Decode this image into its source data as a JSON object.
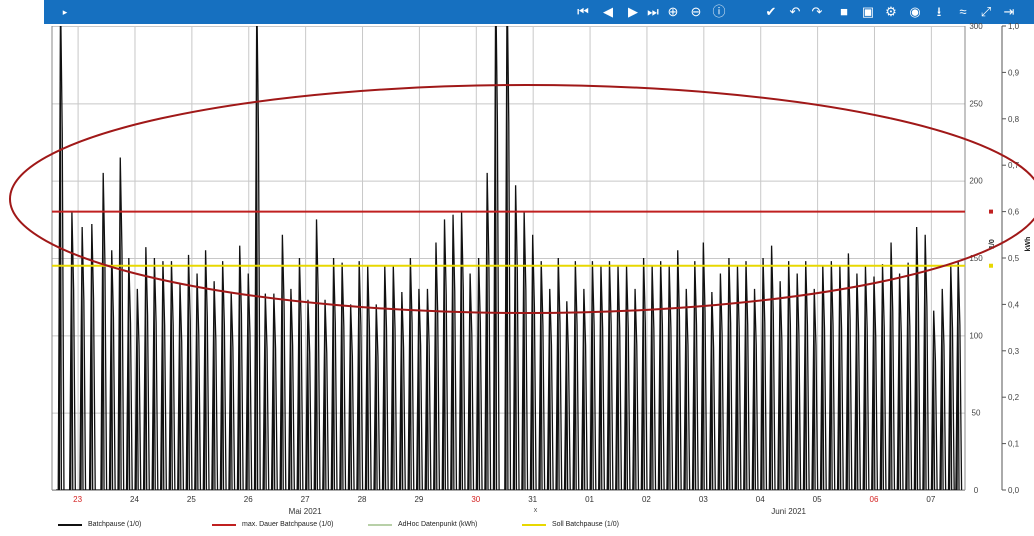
{
  "toolbar": {
    "background": "#1670c0",
    "menu_glyph": "▸",
    "buttons": [
      {
        "name": "skip-to-start-icon",
        "glyph": "⏮"
      },
      {
        "name": "step-back-icon",
        "glyph": "◀"
      },
      {
        "name": "step-forward-icon",
        "glyph": "▶"
      },
      {
        "name": "skip-to-end-icon",
        "glyph": "⏭"
      },
      {
        "name": "zoom-in-icon",
        "glyph": "⊕"
      },
      {
        "name": "zoom-out-icon",
        "glyph": "⊖"
      },
      {
        "name": "info-icon",
        "glyph": "ⓘ"
      },
      {
        "name": "check-icon",
        "glyph": "✔"
      },
      {
        "name": "undo-icon",
        "glyph": "↶"
      },
      {
        "name": "redo-icon",
        "glyph": "↷"
      },
      {
        "name": "save-icon",
        "glyph": "■"
      },
      {
        "name": "save-as-icon",
        "glyph": "▣"
      },
      {
        "name": "settings-gear-icon",
        "glyph": "⚙"
      },
      {
        "name": "eye-icon",
        "glyph": "◉"
      },
      {
        "name": "download-icon",
        "glyph": "⭳"
      },
      {
        "name": "trend-icon",
        "glyph": "≈"
      },
      {
        "name": "expand-icon",
        "glyph": "⤢"
      },
      {
        "name": "exit-icon",
        "glyph": "⇥"
      }
    ]
  },
  "chart_data": {
    "type": "line",
    "x_tick_labels": [
      {
        "label": "23",
        "color": "#d42020"
      },
      {
        "label": "24",
        "color": "#333333"
      },
      {
        "label": "25",
        "color": "#333333"
      },
      {
        "label": "26",
        "color": "#333333"
      },
      {
        "label": "27",
        "color": "#333333"
      },
      {
        "label": "28",
        "color": "#333333"
      },
      {
        "label": "29",
        "color": "#333333"
      },
      {
        "label": "30",
        "color": "#d42020"
      },
      {
        "label": "31",
        "color": "#333333"
      },
      {
        "label": "01",
        "color": "#333333"
      },
      {
        "label": "02",
        "color": "#333333"
      },
      {
        "label": "03",
        "color": "#333333"
      },
      {
        "label": "04",
        "color": "#333333"
      },
      {
        "label": "05",
        "color": "#333333"
      },
      {
        "label": "06",
        "color": "#d42020"
      },
      {
        "label": "07",
        "color": "#333333"
      }
    ],
    "month_labels": [
      {
        "label": "Mai 2021",
        "at": 4
      },
      {
        "label": "Juni 2021",
        "at": 12.5
      }
    ],
    "x_axis_marker": "x",
    "x_range_days": [
      -0.45,
      15.6
    ],
    "left_axis": {
      "label": "",
      "ylim": [
        0,
        300
      ],
      "ticks": [
        "0",
        "50",
        "100",
        "150",
        "200",
        "250",
        "300"
      ]
    },
    "right_axis": {
      "label": "kWh",
      "ylim": [
        0,
        1.0
      ],
      "ticks": [
        "0,0",
        "0,1",
        "0,2",
        "0,3",
        "0,4",
        "0,5",
        "0,6",
        "0,7",
        "0,8",
        "0,9",
        "1,0"
      ]
    },
    "right_axis_inner_label": "1/0",
    "grid": true,
    "reference_lines": [
      {
        "name": "max. Dauer Batchpause (1/0)",
        "value": 180,
        "color": "#c02020"
      },
      {
        "name": "Soll Batchpause (1/0)",
        "value": 145,
        "color": "#e8d800"
      }
    ],
    "series": [
      {
        "name": "Batchpause (1/0)",
        "color": "#111111",
        "peaks": [
          {
            "x": -0.3,
            "y": 320
          },
          {
            "x": -0.1,
            "y": 180
          },
          {
            "x": 0.08,
            "y": 170
          },
          {
            "x": 0.25,
            "y": 172
          },
          {
            "x": 0.45,
            "y": 205
          },
          {
            "x": 0.6,
            "y": 155
          },
          {
            "x": 0.75,
            "y": 215
          },
          {
            "x": 0.9,
            "y": 150
          },
          {
            "x": 1.05,
            "y": 130
          },
          {
            "x": 1.2,
            "y": 157
          },
          {
            "x": 1.35,
            "y": 150
          },
          {
            "x": 1.5,
            "y": 148
          },
          {
            "x": 1.65,
            "y": 148
          },
          {
            "x": 1.8,
            "y": 133
          },
          {
            "x": 1.95,
            "y": 152
          },
          {
            "x": 2.1,
            "y": 140
          },
          {
            "x": 2.25,
            "y": 155
          },
          {
            "x": 2.4,
            "y": 135
          },
          {
            "x": 2.55,
            "y": 148
          },
          {
            "x": 2.7,
            "y": 128
          },
          {
            "x": 2.85,
            "y": 158
          },
          {
            "x": 3.0,
            "y": 140
          },
          {
            "x": 3.15,
            "y": 320
          },
          {
            "x": 3.3,
            "y": 127
          },
          {
            "x": 3.45,
            "y": 127
          },
          {
            "x": 3.6,
            "y": 165
          },
          {
            "x": 3.75,
            "y": 130
          },
          {
            "x": 3.9,
            "y": 150
          },
          {
            "x": 4.05,
            "y": 123
          },
          {
            "x": 4.2,
            "y": 175
          },
          {
            "x": 4.35,
            "y": 123
          },
          {
            "x": 4.5,
            "y": 150
          },
          {
            "x": 4.65,
            "y": 147
          },
          {
            "x": 4.8,
            "y": 120
          },
          {
            "x": 4.95,
            "y": 148
          },
          {
            "x": 5.1,
            "y": 145
          },
          {
            "x": 5.25,
            "y": 120
          },
          {
            "x": 5.4,
            "y": 145
          },
          {
            "x": 5.55,
            "y": 145
          },
          {
            "x": 5.7,
            "y": 128
          },
          {
            "x": 5.85,
            "y": 150
          },
          {
            "x": 6.0,
            "y": 130
          },
          {
            "x": 6.15,
            "y": 130
          },
          {
            "x": 6.3,
            "y": 160
          },
          {
            "x": 6.45,
            "y": 175
          },
          {
            "x": 6.6,
            "y": 178
          },
          {
            "x": 6.75,
            "y": 180
          },
          {
            "x": 6.9,
            "y": 140
          },
          {
            "x": 7.05,
            "y": 150
          },
          {
            "x": 7.2,
            "y": 205
          },
          {
            "x": 7.35,
            "y": 330
          },
          {
            "x": 7.55,
            "y": 330
          },
          {
            "x": 7.7,
            "y": 197
          },
          {
            "x": 7.85,
            "y": 180
          },
          {
            "x": 8.0,
            "y": 165
          },
          {
            "x": 8.15,
            "y": 148
          },
          {
            "x": 8.3,
            "y": 130
          },
          {
            "x": 8.45,
            "y": 150
          },
          {
            "x": 8.6,
            "y": 122
          },
          {
            "x": 8.75,
            "y": 148
          },
          {
            "x": 8.9,
            "y": 130
          },
          {
            "x": 9.05,
            "y": 148
          },
          {
            "x": 9.2,
            "y": 145
          },
          {
            "x": 9.35,
            "y": 148
          },
          {
            "x": 9.5,
            "y": 145
          },
          {
            "x": 9.65,
            "y": 145
          },
          {
            "x": 9.8,
            "y": 130
          },
          {
            "x": 9.95,
            "y": 150
          },
          {
            "x": 10.1,
            "y": 145
          },
          {
            "x": 10.25,
            "y": 148
          },
          {
            "x": 10.4,
            "y": 145
          },
          {
            "x": 10.55,
            "y": 155
          },
          {
            "x": 10.7,
            "y": 130
          },
          {
            "x": 10.85,
            "y": 148
          },
          {
            "x": 11.0,
            "y": 160
          },
          {
            "x": 11.15,
            "y": 128
          },
          {
            "x": 11.3,
            "y": 140
          },
          {
            "x": 11.45,
            "y": 150
          },
          {
            "x": 11.6,
            "y": 145
          },
          {
            "x": 11.75,
            "y": 148
          },
          {
            "x": 11.9,
            "y": 130
          },
          {
            "x": 12.05,
            "y": 150
          },
          {
            "x": 12.2,
            "y": 158
          },
          {
            "x": 12.35,
            "y": 135
          },
          {
            "x": 12.5,
            "y": 148
          },
          {
            "x": 12.65,
            "y": 140
          },
          {
            "x": 12.8,
            "y": 148
          },
          {
            "x": 12.95,
            "y": 130
          },
          {
            "x": 13.1,
            "y": 145
          },
          {
            "x": 13.25,
            "y": 148
          },
          {
            "x": 13.4,
            "y": 145
          },
          {
            "x": 13.55,
            "y": 153
          },
          {
            "x": 13.7,
            "y": 140
          },
          {
            "x": 13.85,
            "y": 145
          },
          {
            "x": 14.0,
            "y": 138
          },
          {
            "x": 14.15,
            "y": 146
          },
          {
            "x": 14.3,
            "y": 160
          },
          {
            "x": 14.45,
            "y": 140
          },
          {
            "x": 14.6,
            "y": 147
          },
          {
            "x": 14.75,
            "y": 170
          },
          {
            "x": 14.9,
            "y": 165
          },
          {
            "x": 15.05,
            "y": 116
          },
          {
            "x": 15.2,
            "y": 130
          },
          {
            "x": 15.35,
            "y": 145
          },
          {
            "x": 15.48,
            "y": 148
          }
        ]
      },
      {
        "name": "AdHoc Datenpunkt (kWh)",
        "color": "#b8d0a8",
        "values": []
      }
    ],
    "annotation": {
      "shape": "ellipse",
      "color": "#a01818"
    },
    "legend_position": "bottom",
    "legend": [
      {
        "label": "Batchpause (1/0)",
        "color": "#111111"
      },
      {
        "label": "max. Dauer Batchpause (1/0)",
        "color": "#c02020"
      },
      {
        "label": "AdHoc Datenpunkt (kWh)",
        "color": "#b8d0a8"
      },
      {
        "label": "Soll Batchpause (1/0)",
        "color": "#e8d800"
      }
    ]
  }
}
